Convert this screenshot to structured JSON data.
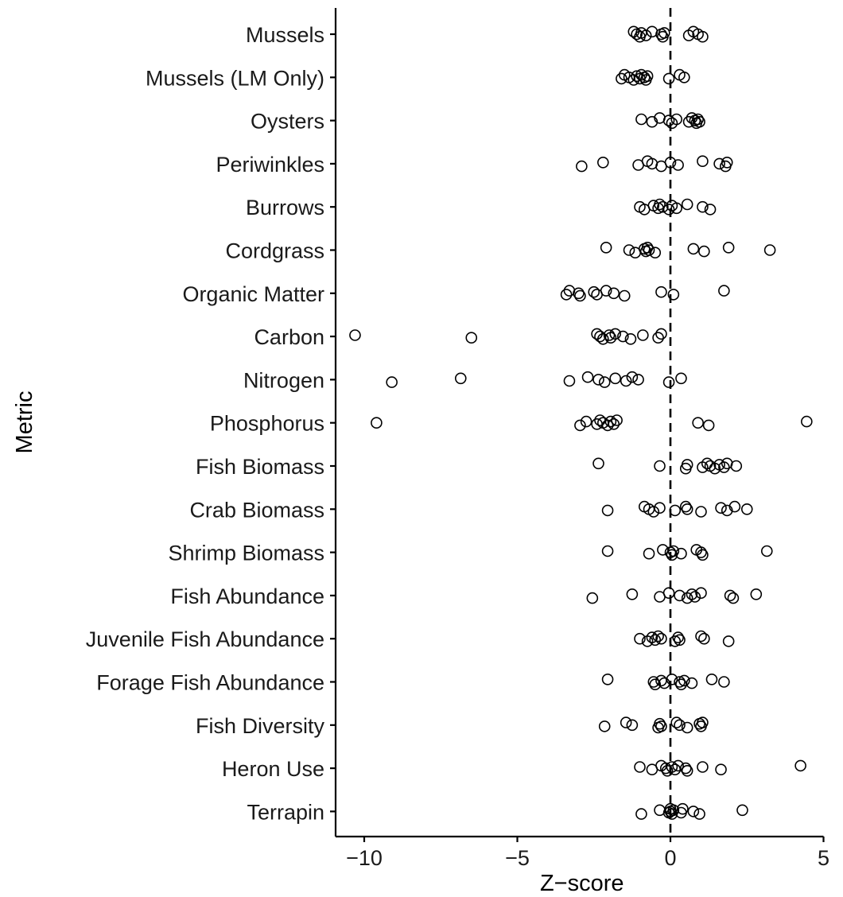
{
  "chart_data": {
    "type": "scatter",
    "xlabel": "Z−score",
    "ylabel": "Metric",
    "xlim": [
      -11,
      5
    ],
    "xticks": [
      -10,
      -5,
      0,
      5
    ],
    "xtick_labels": [
      "−10",
      "−5",
      "0",
      "5"
    ],
    "reference_line": {
      "x": 0,
      "style": "dashed"
    },
    "grid": false,
    "legend": "none",
    "categories": [
      "Mussels",
      "Mussels (LM Only)",
      "Oysters",
      "Periwinkles",
      "Burrows",
      "Cordgrass",
      "Organic Matter",
      "Carbon",
      "Nitrogen",
      "Phosphorus",
      "Fish Biomass",
      "Crab Biomass",
      "Shrimp Biomass",
      "Fish Abundance",
      "Juvenile Fish Abundance",
      "Forage Fish Abundance",
      "Fish Diversity",
      "Heron Use",
      "Terrapin"
    ],
    "points": [
      {
        "category": "Mussels",
        "values": [
          -1.2,
          -1.1,
          -1.0,
          -0.95,
          -0.8,
          -0.6,
          -0.3,
          -0.25,
          -0.2,
          0.6,
          0.75,
          0.9,
          1.05
        ]
      },
      {
        "category": "Mussels (LM Only)",
        "values": [
          -1.6,
          -1.5,
          -1.35,
          -1.2,
          -1.1,
          -1.0,
          -0.95,
          -0.85,
          -0.8,
          -0.75,
          -0.05,
          0.3,
          0.45
        ]
      },
      {
        "category": "Oysters",
        "values": [
          -0.95,
          -0.6,
          -0.35,
          -0.05,
          0.05,
          0.2,
          0.6,
          0.7,
          0.8,
          0.85,
          0.9,
          0.95
        ]
      },
      {
        "category": "Periwinkles",
        "values": [
          -2.9,
          -2.2,
          -1.05,
          -0.75,
          -0.6,
          -0.3,
          0.0,
          0.25,
          1.05,
          1.6,
          1.8,
          1.85
        ]
      },
      {
        "category": "Burrows",
        "values": [
          -1.0,
          -0.85,
          -0.55,
          -0.4,
          -0.35,
          -0.25,
          -0.05,
          0.05,
          0.2,
          0.55,
          1.05,
          1.3
        ]
      },
      {
        "category": "Cordgrass",
        "values": [
          -2.1,
          -1.35,
          -1.15,
          -0.85,
          -0.8,
          -0.75,
          -0.7,
          -0.5,
          0.75,
          1.1,
          1.9,
          3.25
        ]
      },
      {
        "category": "Organic Matter",
        "values": [
          -3.4,
          -3.3,
          -3.0,
          -2.95,
          -2.5,
          -2.4,
          -2.1,
          -1.85,
          -1.5,
          -0.3,
          0.1,
          1.75
        ]
      },
      {
        "category": "Carbon",
        "values": [
          -10.3,
          -6.5,
          -2.4,
          -2.3,
          -2.2,
          -2.0,
          -1.95,
          -1.8,
          -1.55,
          -1.3,
          -0.9,
          -0.4,
          -0.3
        ]
      },
      {
        "category": "Nitrogen",
        "values": [
          -9.1,
          -6.85,
          -3.3,
          -2.7,
          -2.35,
          -2.15,
          -1.8,
          -1.45,
          -1.25,
          -1.05,
          -0.05,
          0.35
        ]
      },
      {
        "category": "Phosphorus",
        "values": [
          -9.6,
          -2.95,
          -2.75,
          -2.4,
          -2.3,
          -2.2,
          -2.05,
          -1.95,
          -1.85,
          -1.75,
          0.9,
          1.25,
          4.45
        ]
      },
      {
        "category": "Fish Biomass",
        "values": [
          -2.35,
          -0.35,
          0.5,
          0.55,
          1.05,
          1.2,
          1.3,
          1.45,
          1.6,
          1.75,
          1.85,
          2.15
        ]
      },
      {
        "category": "Crab Biomass",
        "values": [
          -2.05,
          -0.85,
          -0.7,
          -0.55,
          -0.35,
          0.15,
          0.5,
          0.55,
          1.0,
          1.65,
          1.85,
          2.1,
          2.5
        ]
      },
      {
        "category": "Shrimp Biomass",
        "values": [
          -2.05,
          -0.7,
          -0.25,
          0.0,
          0.05,
          0.1,
          0.35,
          0.85,
          1.0,
          1.05,
          3.15
        ]
      },
      {
        "category": "Fish Abundance",
        "values": [
          -2.55,
          -1.25,
          -0.35,
          -0.05,
          0.3,
          0.55,
          0.7,
          0.8,
          1.0,
          1.95,
          2.05,
          2.8
        ]
      },
      {
        "category": "Juvenile Fish Abundance",
        "values": [
          -1.0,
          -0.75,
          -0.6,
          -0.5,
          -0.4,
          -0.3,
          0.15,
          0.25,
          0.3,
          1.0,
          1.1,
          1.9
        ]
      },
      {
        "category": "Forage Fish Abundance",
        "values": [
          -2.05,
          -0.55,
          -0.5,
          -0.3,
          -0.2,
          0.05,
          0.3,
          0.35,
          0.45,
          0.7,
          1.35,
          1.75
        ]
      },
      {
        "category": "Fish Diversity",
        "values": [
          -2.15,
          -1.45,
          -1.25,
          -0.4,
          -0.35,
          -0.3,
          0.2,
          0.3,
          0.55,
          0.95,
          1.0,
          1.05
        ]
      },
      {
        "category": "Heron Use",
        "values": [
          -1.0,
          -0.6,
          -0.3,
          -0.15,
          -0.1,
          0.05,
          0.15,
          0.25,
          0.5,
          0.55,
          1.05,
          1.65,
          4.25
        ]
      },
      {
        "category": "Terrapin",
        "values": [
          -0.95,
          -0.35,
          -0.05,
          0.0,
          0.0,
          0.05,
          0.1,
          0.35,
          0.4,
          0.75,
          0.95,
          2.35
        ]
      }
    ]
  }
}
